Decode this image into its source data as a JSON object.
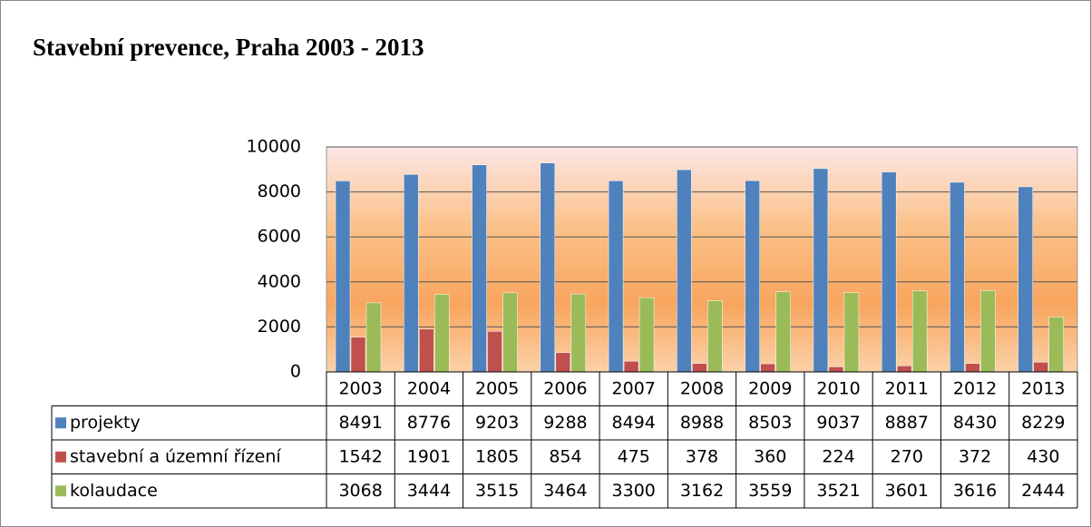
{
  "chart_data": {
    "type": "bar",
    "title": "Stavební prevence, Praha 2003 - 2013",
    "categories": [
      "2003",
      "2004",
      "2005",
      "2006",
      "2007",
      "2008",
      "2009",
      "2010",
      "2011",
      "2012",
      "2013"
    ],
    "series": [
      {
        "name": "projekty",
        "color": "#4f81bd",
        "values": [
          8491,
          8776,
          9203,
          9288,
          8494,
          8988,
          8503,
          9037,
          8887,
          8430,
          8229
        ]
      },
      {
        "name": "stavební a územní řízení",
        "color": "#c0504d",
        "values": [
          1542,
          1901,
          1805,
          854,
          475,
          378,
          360,
          224,
          270,
          372,
          430
        ]
      },
      {
        "name": "kolaudace",
        "color": "#9bbb59",
        "values": [
          3068,
          3444,
          3515,
          3464,
          3300,
          3162,
          3559,
          3521,
          3601,
          3616,
          2444
        ]
      }
    ],
    "ylim": [
      0,
      10000
    ],
    "yticks": [
      0,
      2000,
      4000,
      6000,
      8000,
      10000
    ],
    "grid": true
  }
}
